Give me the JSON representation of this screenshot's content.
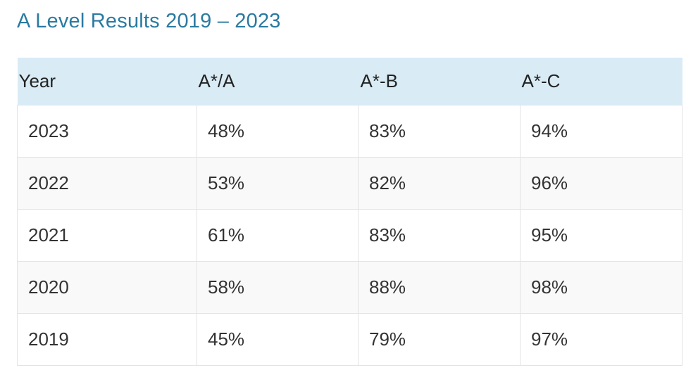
{
  "title": "A Level Results 2019 – 2023",
  "table": {
    "headers": [
      "Year",
      "A*/A",
      "A*-B",
      "A*-C"
    ],
    "rows": [
      [
        "2023",
        "48%",
        "83%",
        "94%"
      ],
      [
        "2022",
        "53%",
        "82%",
        "96%"
      ],
      [
        "2021",
        "61%",
        "83%",
        "95%"
      ],
      [
        "2020",
        "58%",
        "88%",
        "98%"
      ],
      [
        "2019",
        "45%",
        "79%",
        "97%"
      ]
    ]
  },
  "colors": {
    "title": "#2a7aa1",
    "header_bg": "#d9ebf5",
    "row_alt_bg": "#f9f9f9",
    "border": "#e3e3e3"
  }
}
